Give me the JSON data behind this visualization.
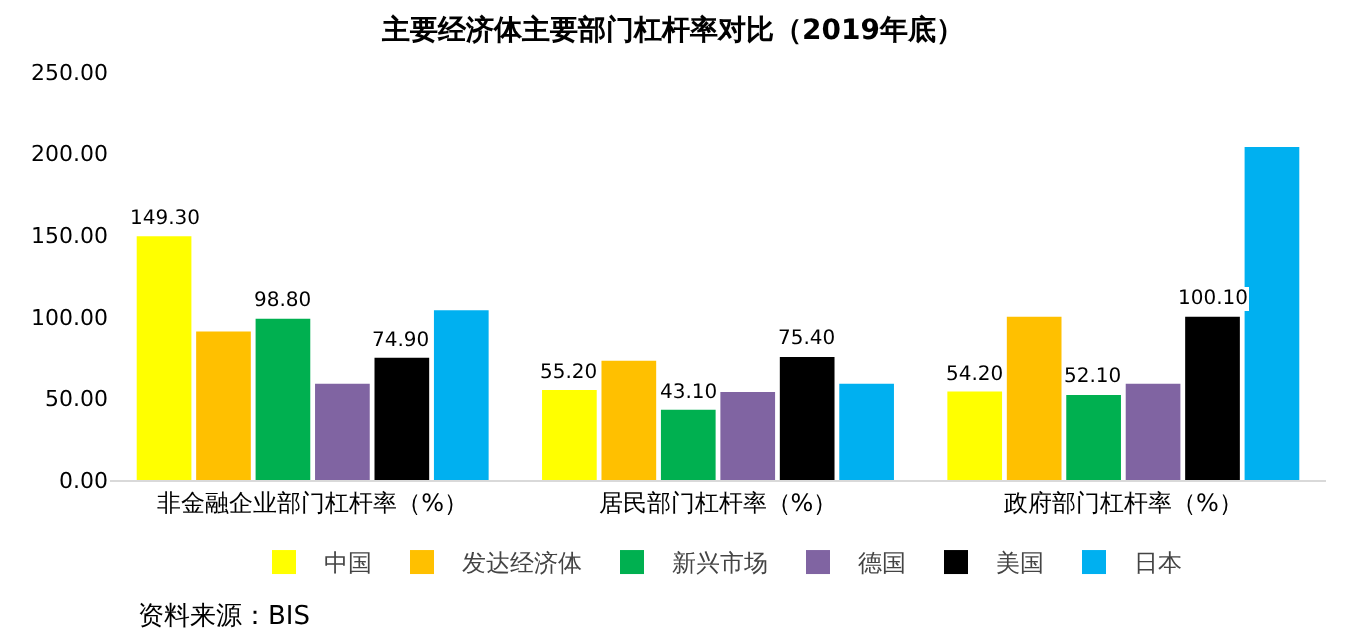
{
  "chart_data": {
    "type": "bar",
    "title": "主要经济体主要部门杠杆率对比（2019年底）",
    "categories": [
      "非金融企业部门杠杆率（%）",
      "居民部门杠杆率（%）",
      "政府部门杠杆率（%）"
    ],
    "series": [
      {
        "name": "中国",
        "color": "#ffff00",
        "values": [
          149.3,
          55.2,
          54.2
        ],
        "value_labels": [
          "149.30",
          "55.20",
          "54.20"
        ]
      },
      {
        "name": "发达经济体",
        "color": "#ffc000",
        "values": [
          91,
          73,
          100
        ],
        "value_labels": [
          null,
          null,
          null
        ]
      },
      {
        "name": "新兴市场",
        "color": "#00b050",
        "values": [
          98.8,
          43.1,
          52.1
        ],
        "value_labels": [
          "98.80",
          "43.10",
          "52.10"
        ]
      },
      {
        "name": "德国",
        "color": "#8064a2",
        "values": [
          59,
          54,
          59
        ],
        "value_labels": [
          null,
          null,
          null
        ]
      },
      {
        "name": "美国",
        "color": "#000000",
        "values": [
          74.9,
          75.4,
          100.1
        ],
        "value_labels": [
          "74.90",
          "75.40",
          "100.10"
        ]
      },
      {
        "name": "日本",
        "color": "#00b0f0",
        "values": [
          104,
          59,
          204
        ],
        "value_labels": [
          null,
          null,
          null
        ]
      }
    ],
    "ylim": [
      0,
      250
    ],
    "yticks": [
      {
        "value": 0,
        "label": "0.00"
      },
      {
        "value": 50,
        "label": "50.00"
      },
      {
        "value": 100,
        "label": "100.00"
      },
      {
        "value": 150,
        "label": "150.00"
      },
      {
        "value": 200,
        "label": "200.00"
      },
      {
        "value": 250,
        "label": "250.00"
      }
    ],
    "grid": false,
    "legend": "bottom",
    "annotations": [
      "资料来源：BIS"
    ]
  }
}
